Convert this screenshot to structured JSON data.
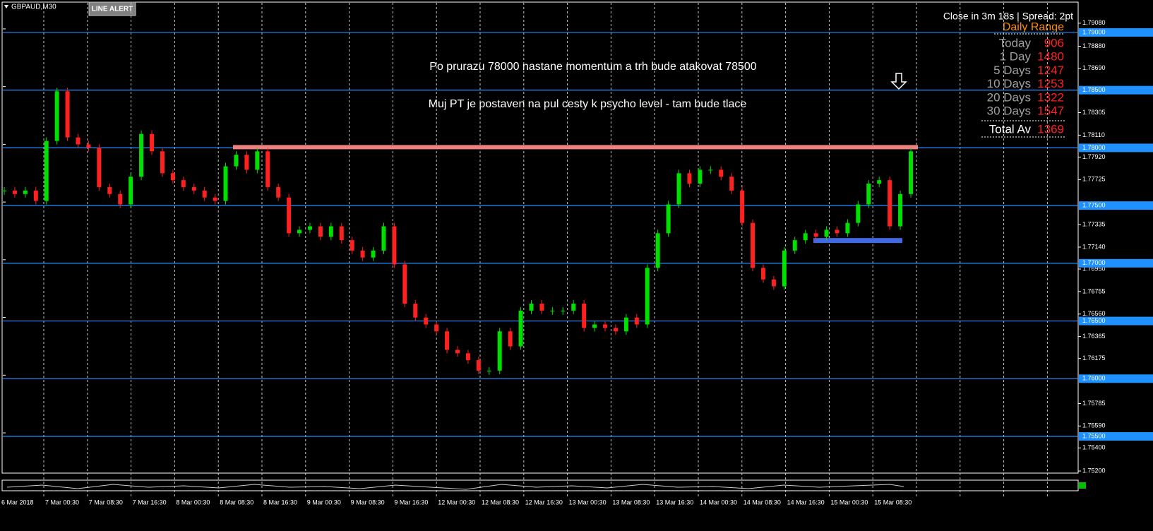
{
  "chart_data": {
    "type": "candlestick",
    "symbol": "GBPAUD,M30",
    "button": "LINE ALERT",
    "status": "Close in 3m 18s | Spread: 2pt",
    "annotations": [
      "Po prurazu 78000 nastane momentum a trh bude atakovat 78500",
      "Muj PT je postaven na pul cesty k psycho level - tam bude tlace"
    ],
    "daily_range": {
      "title": "Daily Range",
      "rows": [
        {
          "label": "Today",
          "value": 906
        },
        {
          "label": "1 Day",
          "value": 1480
        },
        {
          "label": "5 Days",
          "value": 1247
        },
        {
          "label": "10 Days",
          "value": 1253
        },
        {
          "label": "20 Days",
          "value": 1322
        },
        {
          "label": "30 Days",
          "value": 1547
        }
      ],
      "total": {
        "label": "Total Av",
        "value": 1369
      }
    },
    "time_labels": [
      "6 Mar 2018",
      "7 Mar 00:30",
      "7 Mar 08:30",
      "7 Mar 16:30",
      "8 Mar 00:30",
      "8 Mar 08:30",
      "8 Mar 16:30",
      "9 Mar 00:30",
      "9 Mar 08:30",
      "9 Mar 16:30",
      "12 Mar 00:30",
      "12 Mar 08:30",
      "12 Mar 16:30",
      "13 Mar 00:30",
      "13 Mar 08:30",
      "13 Mar 16:30",
      "14 Mar 00:30",
      "14 Mar 08:30",
      "14 Mar 16:30",
      "15 Mar 00:30",
      "15 Mar 08:30"
    ],
    "close": [
      1.7763,
      1.776,
      1.7763,
      1.7754,
      1.7806,
      1.7849,
      1.7809,
      1.7803,
      1.78,
      1.7766,
      1.776,
      1.7751,
      1.7775,
      1.7812,
      1.7797,
      1.7778,
      1.7772,
      1.7766,
      1.7763,
      1.7757,
      1.7754,
      1.7784,
      1.7794,
      1.7781,
      1.7797,
      1.7766,
      1.7757,
      1.7726,
      1.7729,
      1.7732,
      1.7723,
      1.7732,
      1.772,
      1.7711,
      1.7705,
      1.7711,
      1.7732,
      1.7699,
      1.7665,
      1.7653,
      1.7647,
      1.7641,
      1.7625,
      1.7622,
      1.7616,
      1.7607,
      1.7607,
      1.7641,
      1.7628,
      1.7659,
      1.7665,
      1.7659,
      1.7659,
      1.7659,
      1.7665,
      1.7644,
      1.7647,
      1.7644,
      1.7641,
      1.7653,
      1.7647,
      1.7696,
      1.7726,
      1.7751,
      1.7778,
      1.7769,
      1.7781,
      1.7781,
      1.7775,
      1.7763,
      1.7735,
      1.7696,
      1.7686,
      1.768,
      1.7711,
      1.772,
      1.7726,
      1.7723,
      1.7729,
      1.7726,
      1.7735,
      1.7751,
      1.7769,
      1.7772,
      1.7732,
      1.776,
      1.7797
    ],
    "up_color": "#00e000",
    "down_color": "#ff2020",
    "ylim": [
      1.79281,
      1.75182
    ],
    "yticks": [
      {
        "value": 1.7908,
        "label": "1.79080"
      },
      {
        "value": 1.7888,
        "label": "1.78880"
      },
      {
        "value": 1.7869,
        "label": "1.78690"
      },
      1.78305,
      {
        "value": 1.7811,
        "label": "1.78110"
      },
      {
        "value": 1.7792,
        "label": "1.77920"
      },
      1.77725,
      1.77335,
      {
        "value": 1.7714,
        "label": "1.77140"
      },
      {
        "value": 1.7695,
        "label": "1.76950"
      },
      1.76755,
      {
        "value": 1.7656,
        "label": "1.76560"
      },
      1.76365,
      1.76175,
      1.75785,
      {
        "value": 1.7559,
        "label": "1.75590"
      },
      {
        "value": 1.754,
        "label": "1.75400"
      },
      {
        "value": 1.752,
        "label": "1.75200"
      }
    ],
    "levels": [
      {
        "value": 1.79,
        "label": "1.79000"
      },
      {
        "value": 1.785,
        "label": "1.78500"
      },
      {
        "value": 1.78,
        "label": "1.78000"
      },
      {
        "value": 1.775,
        "label": "1.77500"
      },
      {
        "value": 1.77,
        "label": "1.77000"
      },
      {
        "value": 1.765,
        "label": "1.76500"
      },
      {
        "value": 1.76,
        "label": "1.76000"
      },
      {
        "value": 1.755,
        "label": "1.75500"
      }
    ],
    "level_color": "#1e90ff",
    "resistance": 1.78,
    "resistance_color": "#f08080",
    "support": 1.772,
    "support_color": "#4169e1",
    "grid": true
  }
}
